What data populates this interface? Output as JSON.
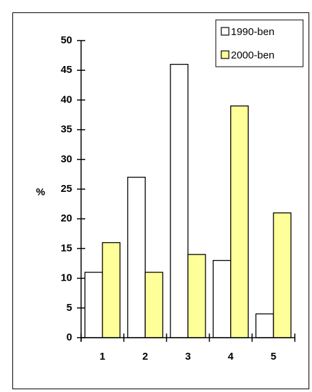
{
  "chart_data": {
    "type": "bar",
    "title": "",
    "xlabel": "",
    "ylabel": "%",
    "categories": [
      "1",
      "2",
      "3",
      "4",
      "5"
    ],
    "ylim": [
      0,
      50
    ],
    "yticks": [
      0,
      5,
      10,
      15,
      20,
      25,
      30,
      35,
      40,
      45,
      50
    ],
    "grid": false,
    "legend_position": "top-right",
    "series": [
      {
        "name": "1990-ben",
        "values": [
          11,
          27,
          46,
          13,
          4
        ],
        "color": "#ffffff"
      },
      {
        "name": "2000-ben",
        "values": [
          16,
          11,
          14,
          39,
          21
        ],
        "color": "#ffff99"
      }
    ]
  }
}
